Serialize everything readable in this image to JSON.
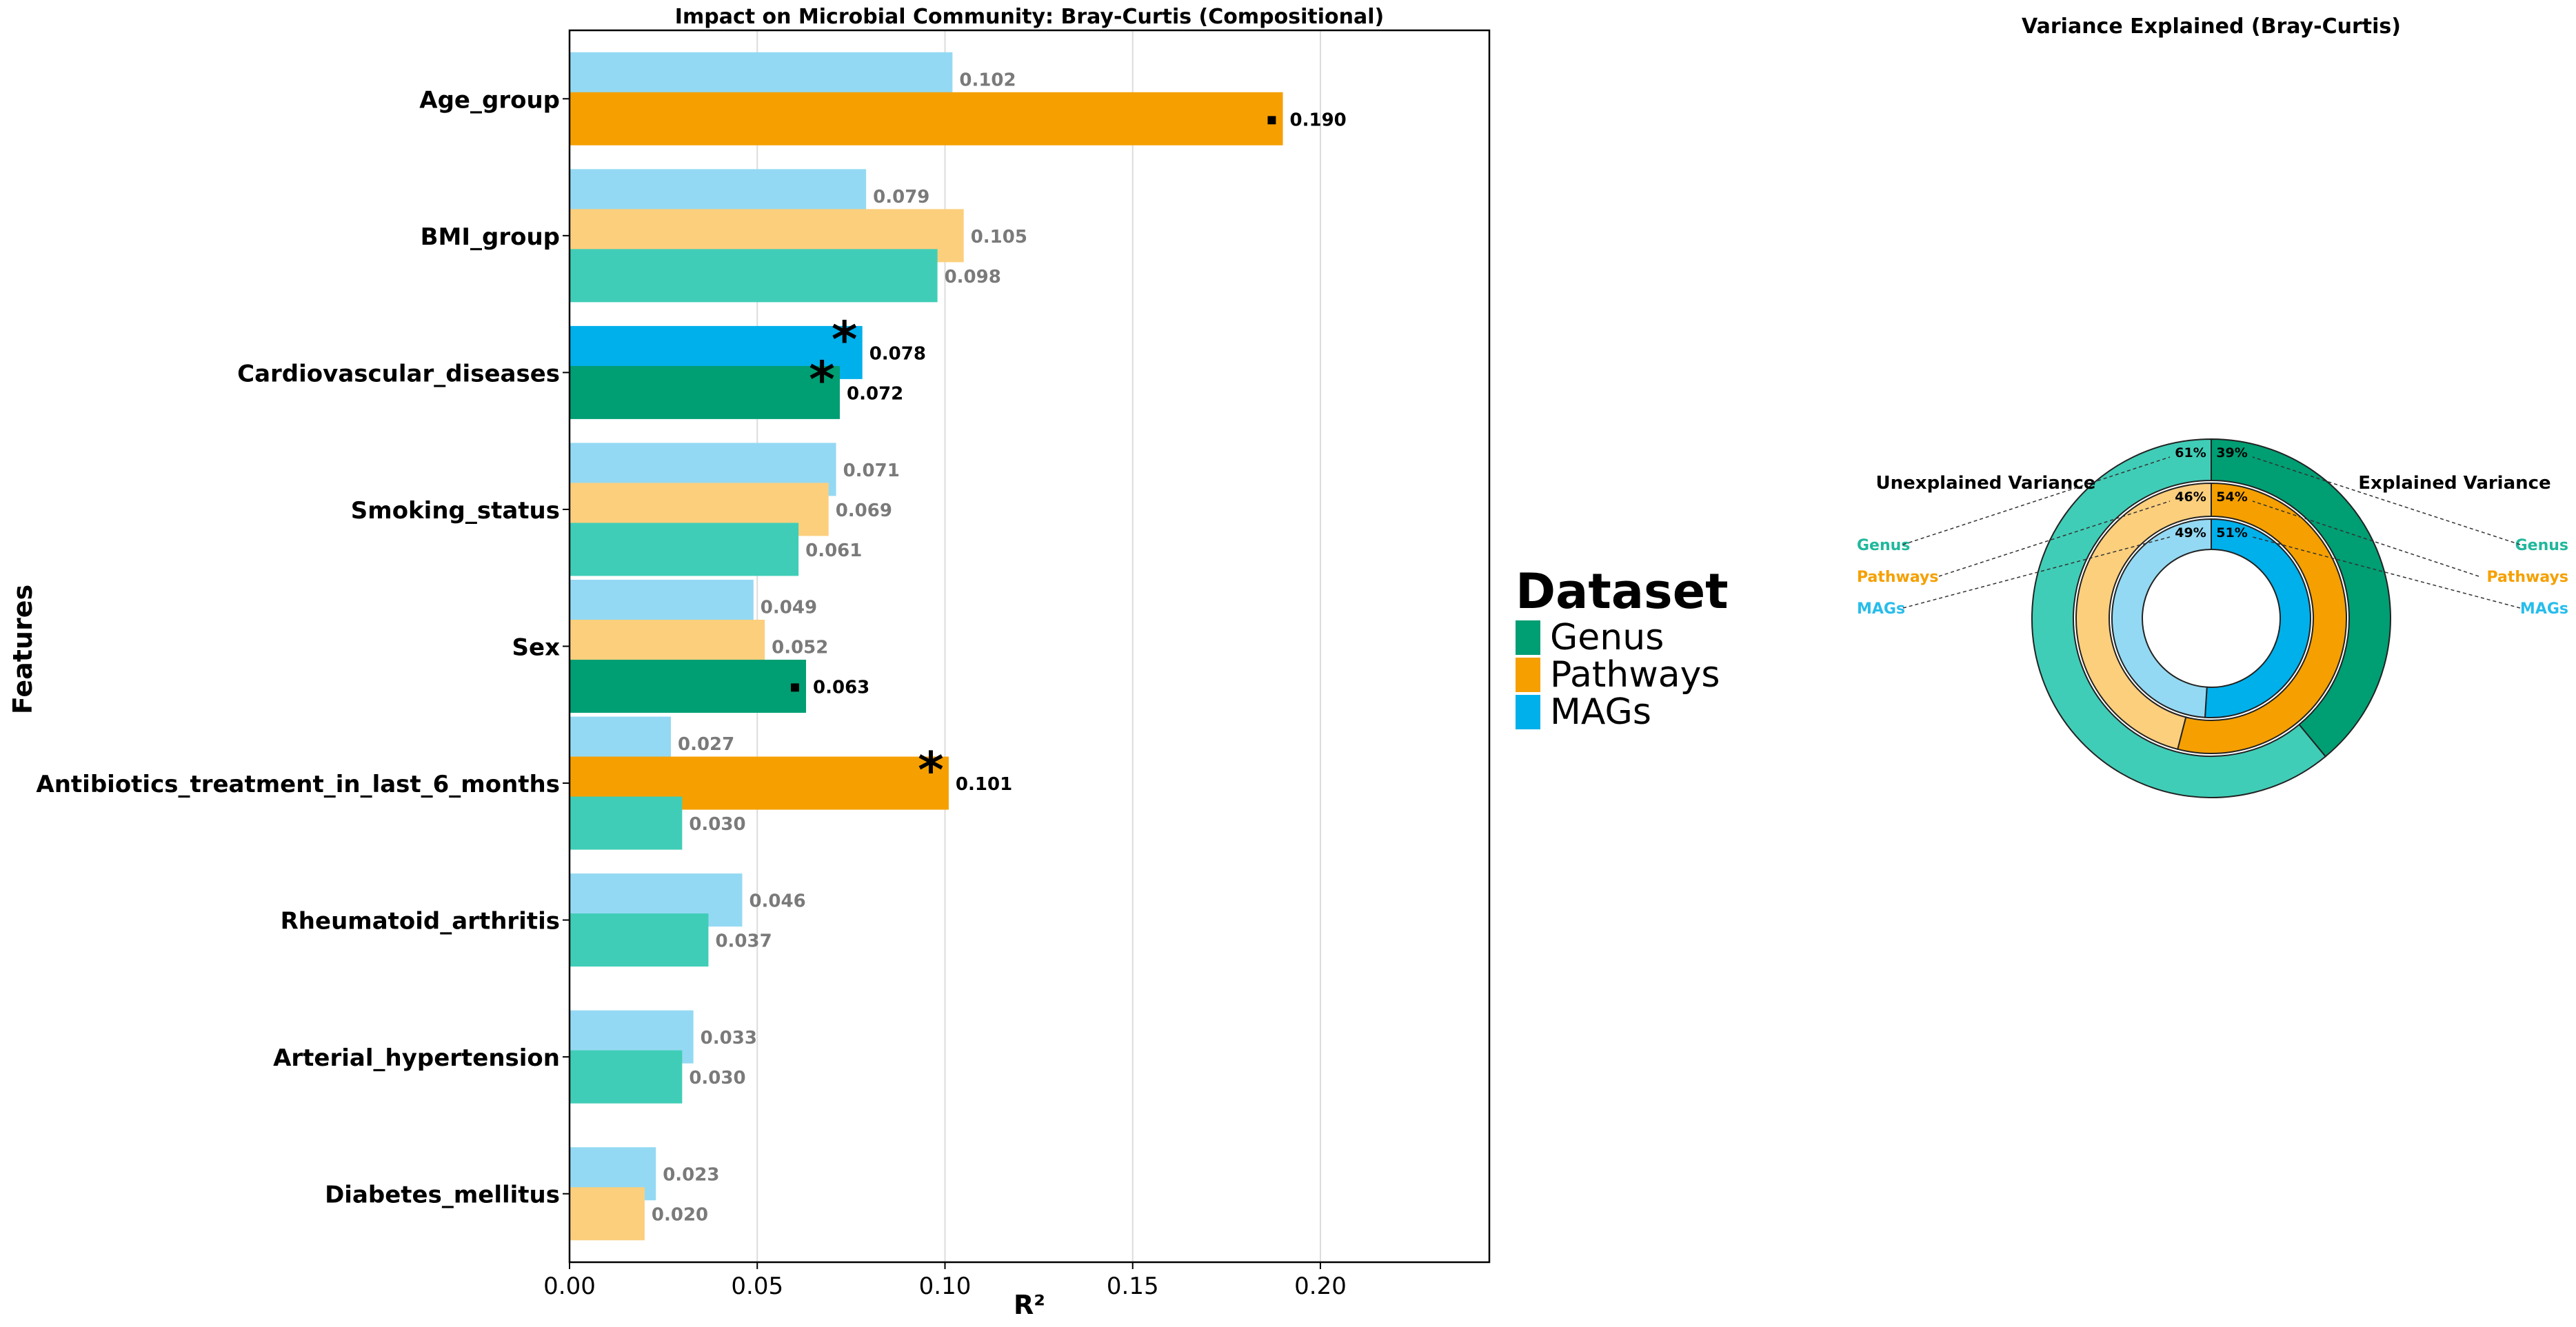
{
  "chart_data": [
    {
      "type": "bar",
      "orientation": "horizontal",
      "title": "Impact on Microbial Community: Bray-Curtis (Compositional)",
      "xlabel": "R²",
      "ylabel": "Features",
      "xlim": [
        0,
        0.245
      ],
      "xticks": [
        "0.00",
        "0.05",
        "0.10",
        "0.15",
        "0.20"
      ],
      "grid": "vertical",
      "legend": {
        "title": "Dataset",
        "position": "right",
        "entries": [
          {
            "label": "Genus",
            "color": "#009E73"
          },
          {
            "label": "Pathways",
            "color": "#F5A000"
          },
          {
            "label": "MAGs",
            "color": "#00B0EB"
          }
        ]
      },
      "categories": [
        {
          "label": "Age_group",
          "bars": [
            {
              "dataset": "MAGs",
              "value": 0.102,
              "label": "0.102",
              "significant": false,
              "marker": ""
            },
            {
              "dataset": "Pathways",
              "value": 0.19,
              "label": "0.190",
              "significant": true,
              "marker": "▪"
            }
          ]
        },
        {
          "label": "BMI_group",
          "bars": [
            {
              "dataset": "MAGs",
              "value": 0.079,
              "label": "0.079",
              "significant": false,
              "marker": ""
            },
            {
              "dataset": "Pathways",
              "value": 0.105,
              "label": "0.105",
              "significant": false,
              "marker": ""
            },
            {
              "dataset": "Genus",
              "value": 0.098,
              "label": "0.098",
              "significant": false,
              "marker": ""
            }
          ]
        },
        {
          "label": "Cardiovascular_diseases",
          "bars": [
            {
              "dataset": "MAGs",
              "value": 0.078,
              "label": "0.078",
              "significant": true,
              "marker": "*"
            },
            {
              "dataset": "Genus",
              "value": 0.072,
              "label": "0.072",
              "significant": true,
              "marker": "*"
            }
          ]
        },
        {
          "label": "Smoking_status",
          "bars": [
            {
              "dataset": "MAGs",
              "value": 0.071,
              "label": "0.071",
              "significant": false,
              "marker": ""
            },
            {
              "dataset": "Pathways",
              "value": 0.069,
              "label": "0.069",
              "significant": false,
              "marker": ""
            },
            {
              "dataset": "Genus",
              "value": 0.061,
              "label": "0.061",
              "significant": false,
              "marker": ""
            }
          ]
        },
        {
          "label": "Sex",
          "bars": [
            {
              "dataset": "MAGs",
              "value": 0.049,
              "label": "0.049",
              "significant": false,
              "marker": ""
            },
            {
              "dataset": "Pathways",
              "value": 0.052,
              "label": "0.052",
              "significant": false,
              "marker": ""
            },
            {
              "dataset": "Genus",
              "value": 0.063,
              "label": "0.063",
              "significant": true,
              "marker": "▪"
            }
          ]
        },
        {
          "label": "Antibiotics_treatment_in_last_6_months",
          "bars": [
            {
              "dataset": "MAGs",
              "value": 0.027,
              "label": "0.027",
              "significant": false,
              "marker": ""
            },
            {
              "dataset": "Pathways",
              "value": 0.101,
              "label": "0.101",
              "significant": true,
              "marker": "*"
            },
            {
              "dataset": "Genus",
              "value": 0.03,
              "label": "0.030",
              "significant": false,
              "marker": ""
            }
          ]
        },
        {
          "label": "Rheumatoid_arthritis",
          "bars": [
            {
              "dataset": "MAGs",
              "value": 0.046,
              "label": "0.046",
              "significant": false,
              "marker": ""
            },
            {
              "dataset": "Genus",
              "value": 0.037,
              "label": "0.037",
              "significant": false,
              "marker": ""
            }
          ]
        },
        {
          "label": "Arterial_hypertension",
          "bars": [
            {
              "dataset": "MAGs",
              "value": 0.033,
              "label": "0.033",
              "significant": false,
              "marker": ""
            },
            {
              "dataset": "Genus",
              "value": 0.03,
              "label": "0.030",
              "significant": false,
              "marker": ""
            }
          ]
        },
        {
          "label": "Diabetes_mellitus",
          "bars": [
            {
              "dataset": "MAGs",
              "value": 0.023,
              "label": "0.023",
              "significant": false,
              "marker": ""
            },
            {
              "dataset": "Pathways",
              "value": 0.02,
              "label": "0.020",
              "significant": false,
              "marker": ""
            }
          ]
        }
      ]
    },
    {
      "type": "pie",
      "variant": "nested-donut",
      "title": "Variance Explained (Bray-Curtis)",
      "left_heading": "Unexplained Variance",
      "right_heading": "Explained Variance",
      "rings": [
        {
          "dataset": "Genus",
          "explained": 39,
          "unexplained": 61,
          "explained_label": "39%",
          "unexplained_label": "61%",
          "color_explained": "#009E73",
          "color_unexplained": "#40CDB7"
        },
        {
          "dataset": "Pathways",
          "explained": 54,
          "unexplained": 46,
          "explained_label": "54%",
          "unexplained_label": "46%",
          "color_explained": "#F5A000",
          "color_unexplained": "#FCCF7D"
        },
        {
          "dataset": "MAGs",
          "explained": 51,
          "unexplained": 49,
          "explained_label": "51%",
          "unexplained_label": "49%",
          "color_explained": "#00B0EB",
          "color_unexplained": "#94D9F3"
        }
      ],
      "side_labels": [
        {
          "label": "Genus",
          "color": "#20B89C"
        },
        {
          "label": "Pathways",
          "color": "#F5A000"
        },
        {
          "label": "MAGs",
          "color": "#28BDEB"
        }
      ]
    }
  ]
}
